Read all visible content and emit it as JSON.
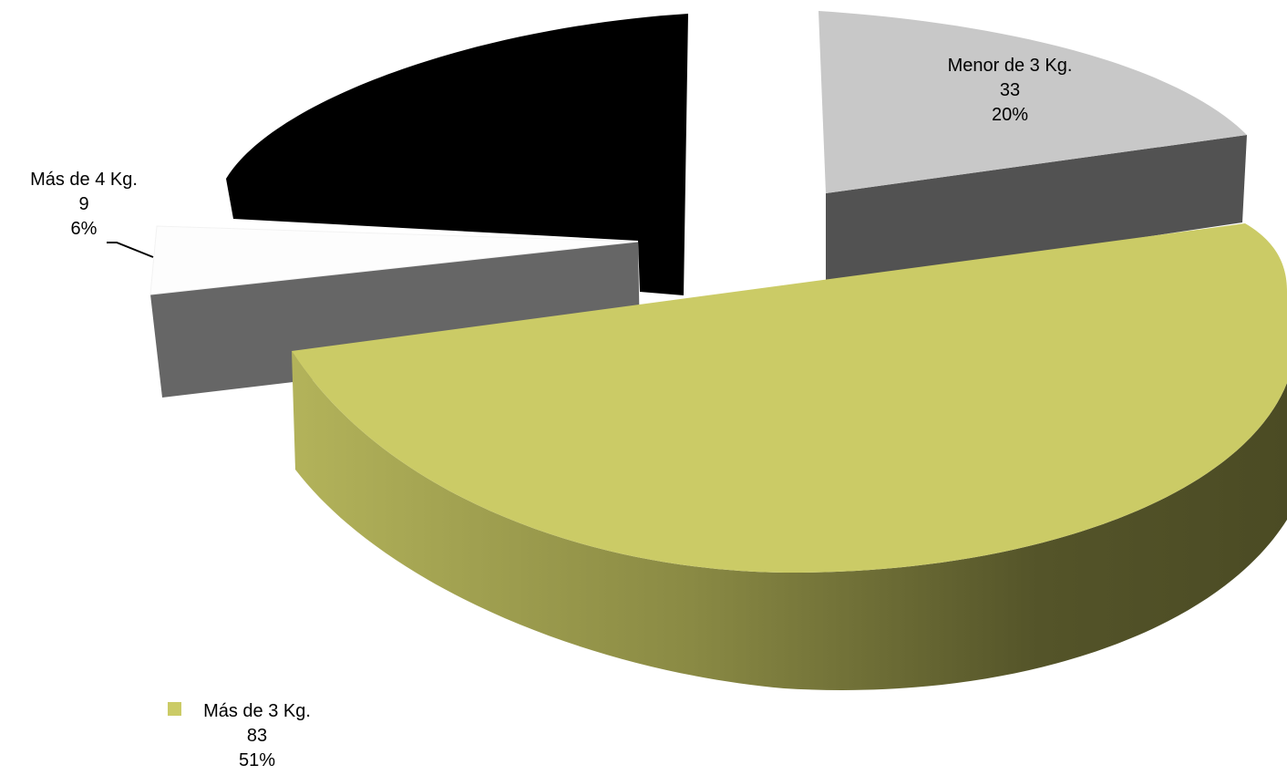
{
  "chart_data": {
    "type": "pie",
    "title": "",
    "three_d": true,
    "exploded": true,
    "legend": "none",
    "slices": [
      {
        "name": "Menor de 3 Kg.",
        "value": 33,
        "percent": "20%",
        "color": "#c8c8c8",
        "side_color": "#525252"
      },
      {
        "name": "Más de 3 Kg.",
        "value": 83,
        "percent": "51%",
        "color": "#cbcb66",
        "side_color": "#6b6b33"
      },
      {
        "name": "Más de 4 Kg.",
        "value": 9,
        "percent": "6%",
        "color": "#fdfdfd",
        "side_color": "#666666"
      },
      {
        "name": "",
        "value": 38,
        "percent": "",
        "color": "#000000",
        "side_color": "#000000"
      }
    ]
  }
}
